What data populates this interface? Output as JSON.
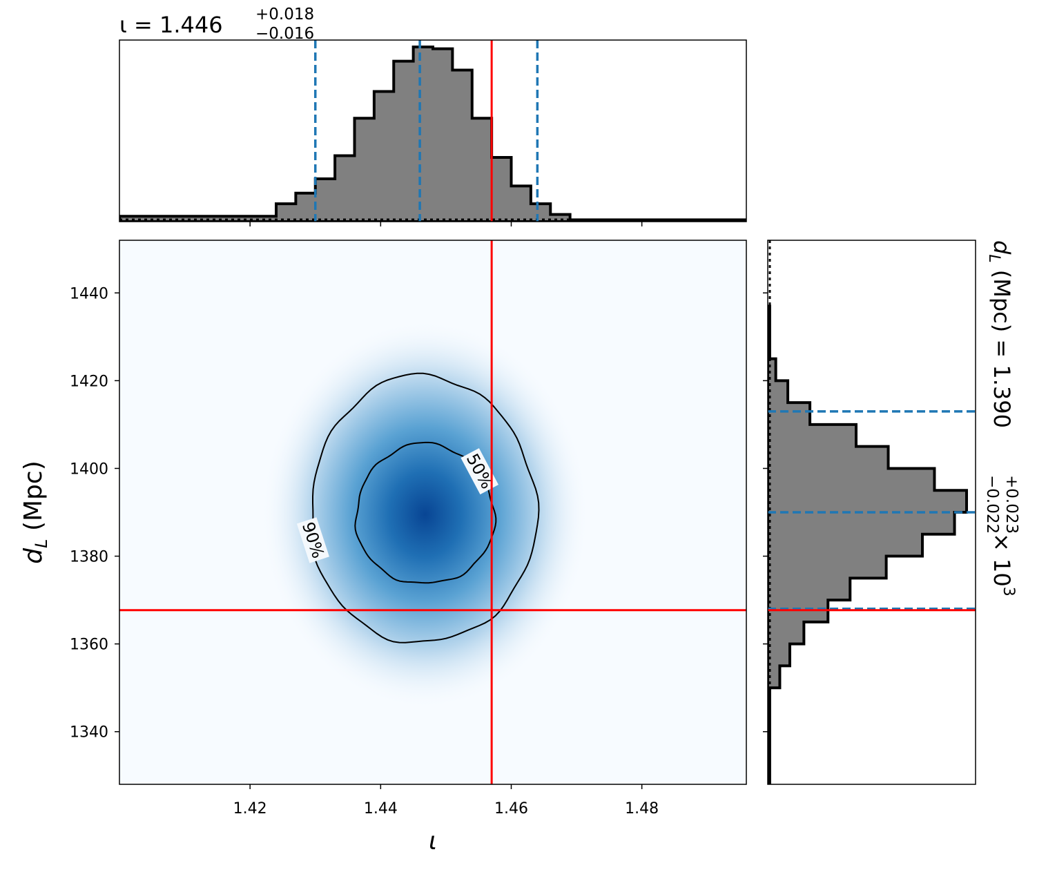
{
  "chart_data": {
    "type": "corner",
    "x_param": {
      "label": "ι",
      "median": "1.446",
      "plus": "+0.018",
      "minus": "−0.016",
      "median_value": 1.446,
      "q_low": 1.43,
      "q_high": 1.464,
      "true_value": 1.457,
      "range": [
        1.4,
        1.496
      ],
      "ticks": [
        1.42,
        1.44,
        1.46,
        1.48
      ],
      "tick_labels": [
        "1.42",
        "1.44",
        "1.46",
        "1.48"
      ]
    },
    "y_param": {
      "label": "d",
      "label_sub": "L",
      "unit": "(Mpc)",
      "summary_prefix": "(Mpc) = 1.390",
      "summary_plus": "+0.023",
      "summary_minus": "−0.022",
      "summary_suffix": "× 10",
      "summary_exp": "3",
      "median_value": 1390,
      "q_low": 1368,
      "q_high": 1413,
      "true_value": 1367.7,
      "range": [
        1328,
        1452
      ],
      "ticks": [
        1340,
        1360,
        1380,
        1400,
        1420,
        1440
      ],
      "tick_labels": [
        "1340",
        "1360",
        "1380",
        "1400",
        "1420",
        "1440"
      ]
    },
    "histogram_x": {
      "bin_edges": [
        1.4,
        1.424,
        1.427,
        1.43,
        1.433,
        1.436,
        1.439,
        1.442,
        1.445,
        1.448,
        1.451,
        1.454,
        1.457,
        1.46,
        1.463,
        1.466,
        1.469,
        1.496
      ],
      "counts": [
        0.03,
        0.1,
        0.16,
        0.24,
        0.37,
        0.58,
        0.73,
        0.9,
        0.98,
        0.97,
        0.85,
        0.58,
        0.36,
        0.2,
        0.1,
        0.04,
        0.01
      ]
    },
    "histogram_y": {
      "bin_edges": [
        1328,
        1350,
        1355,
        1360,
        1365,
        1370,
        1375,
        1380,
        1385,
        1390,
        1395,
        1400,
        1405,
        1410,
        1415,
        1420,
        1425,
        1437
      ],
      "counts": [
        0.01,
        0.06,
        0.11,
        0.18,
        0.3,
        0.41,
        0.59,
        0.77,
        0.93,
        0.99,
        0.83,
        0.6,
        0.44,
        0.21,
        0.1,
        0.04,
        0.01
      ]
    },
    "contours": [
      {
        "label": "50%",
        "center": [
          1.4468,
          1389.5
        ],
        "rx": 0.0106,
        "ry": 16
      },
      {
        "label": "90%",
        "center": [
          1.4465,
          1390.5
        ],
        "rx": 0.0173,
        "ry": 30.5
      }
    ],
    "colors": {
      "hist_fill": "#808080",
      "quantile_lines": "#1f77b4",
      "truth_lines": "#ff0000",
      "density_low": "#f7fbff",
      "density_high": "#08306b"
    }
  }
}
